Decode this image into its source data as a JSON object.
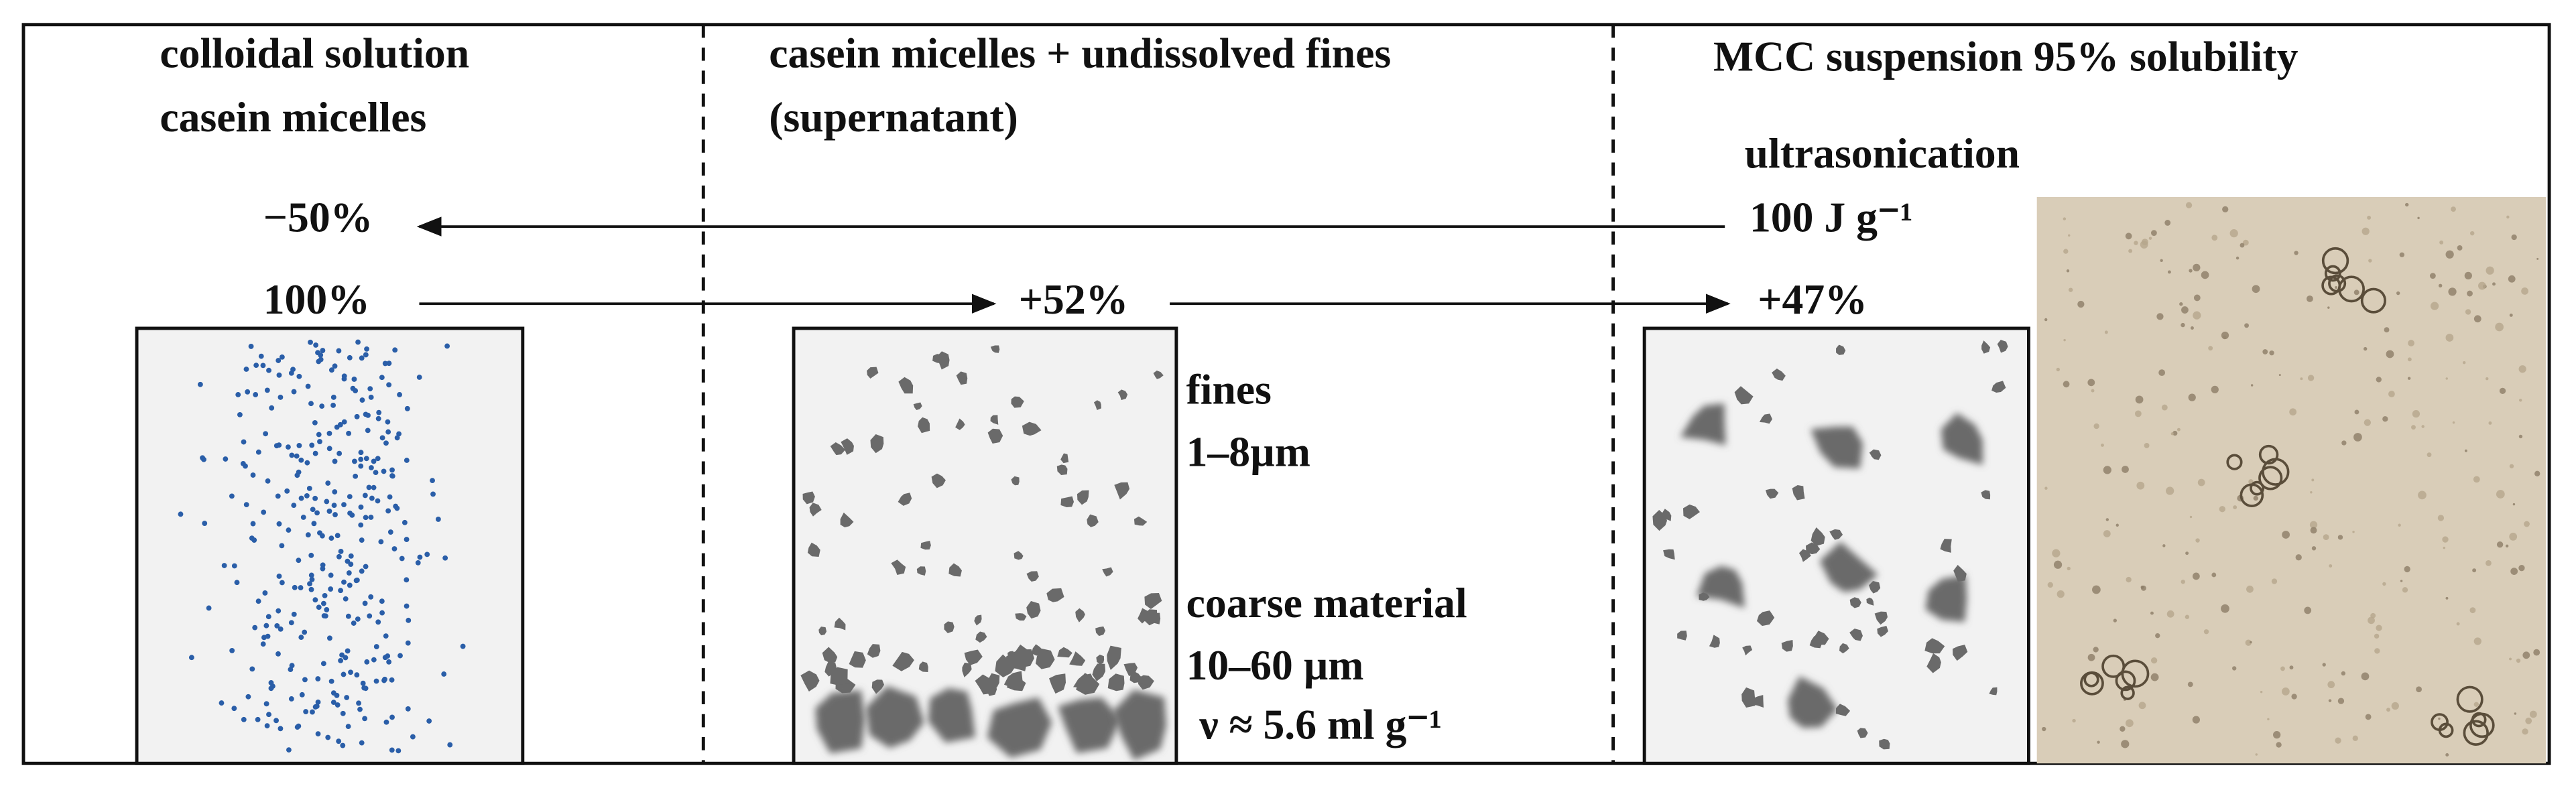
{
  "panels": [
    {
      "title_lines": [
        "colloidal solution",
        "casein micelles"
      ]
    },
    {
      "title_lines": [
        "casein micelles + undissolved fines",
        "(supernatant)"
      ]
    },
    {
      "title_lines": [
        "MCC suspension 95% solubility"
      ]
    }
  ],
  "ultrasonication": {
    "label": "ultrasonication",
    "energy": "100 J g⁻¹"
  },
  "percentages": [
    "−50%",
    "100%",
    "+52%",
    "+47%"
  ],
  "fines": {
    "label": "fines",
    "size": "1–8µm"
  },
  "coarse": {
    "label": "coarse material",
    "size": "10–60 µm",
    "volume": "ν ≈ 5.6 ml g⁻¹"
  }
}
